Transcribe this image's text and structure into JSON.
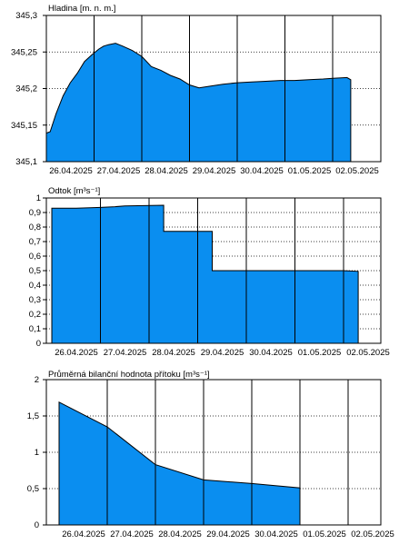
{
  "chart_data": [
    {
      "type": "area",
      "title": "Hladina [m. n. m.]",
      "x_labels": [
        "26.04.2025",
        "27.04.2025",
        "28.04.2025",
        "29.04.2025",
        "30.04.2025",
        "01.05.2025",
        "02.05.2025"
      ],
      "y_ticks": [
        "345,3",
        "345,25",
        "345,2",
        "345,15",
        "345,1"
      ],
      "ylim": [
        345.1,
        345.3
      ],
      "grid": true,
      "fill_color": "#0a8ef0",
      "x_day": [
        0,
        0.08,
        0.2,
        0.35,
        0.5,
        0.65,
        0.8,
        0.95,
        1.1,
        1.2,
        1.3,
        1.45,
        1.6,
        1.8,
        2.0,
        2.2,
        2.4,
        2.6,
        2.8,
        3.0,
        3.2,
        3.4,
        3.7,
        4.0,
        4.3,
        4.6,
        4.9,
        5.2,
        5.5,
        5.8,
        6.0,
        6.3,
        6.38
      ],
      "values": [
        345.139,
        345.141,
        345.165,
        345.19,
        345.208,
        345.221,
        345.237,
        345.246,
        345.254,
        345.258,
        345.26,
        345.262,
        345.258,
        345.252,
        345.244,
        345.23,
        345.225,
        345.218,
        345.213,
        345.205,
        345.201,
        345.203,
        345.206,
        345.208,
        345.209,
        345.21,
        345.211,
        345.211,
        345.212,
        345.213,
        345.214,
        345.215,
        345.212
      ]
    },
    {
      "type": "area",
      "title": "Odtok [m³s⁻¹]",
      "x_labels": [
        "26.04.2025",
        "27.04.2025",
        "28.04.2025",
        "29.04.2025",
        "30.04.2025",
        "01.05.2025",
        "02.05.2025"
      ],
      "y_ticks": [
        "1",
        "0,9",
        "0,8",
        "0,7",
        "0,6",
        "0,5",
        "0,4",
        "0,3",
        "0,2",
        "0,1",
        "0"
      ],
      "ylim": [
        0,
        1
      ],
      "grid": true,
      "fill_color": "#0a8ef0",
      "x_day": [
        0,
        0.5,
        1.0,
        1.3,
        1.5,
        2.3,
        2.3,
        3.3,
        3.3,
        4.5,
        5.5,
        6.0,
        6.3
      ],
      "values": [
        0.93,
        0.93,
        0.935,
        0.94,
        0.945,
        0.95,
        0.77,
        0.77,
        0.5,
        0.5,
        0.5,
        0.5,
        0.495
      ]
    },
    {
      "type": "area",
      "title": "Průměrná bilanční hodnota přítoku   [m³s⁻¹]",
      "x_labels": [
        "26.04.2025",
        "27.04.2025",
        "28.04.2025",
        "29.04.2025",
        "30.04.2025",
        "01.05.2025",
        "02.05.2025"
      ],
      "y_ticks": [
        "2",
        "1,5",
        "1",
        "0,5",
        "0"
      ],
      "ylim": [
        0,
        2
      ],
      "grid": true,
      "fill_color": "#0a8ef0",
      "x_day": [
        0,
        1,
        2,
        3,
        4,
        5
      ],
      "values": [
        1.69,
        1.35,
        0.83,
        0.62,
        0.57,
        0.51
      ]
    }
  ]
}
